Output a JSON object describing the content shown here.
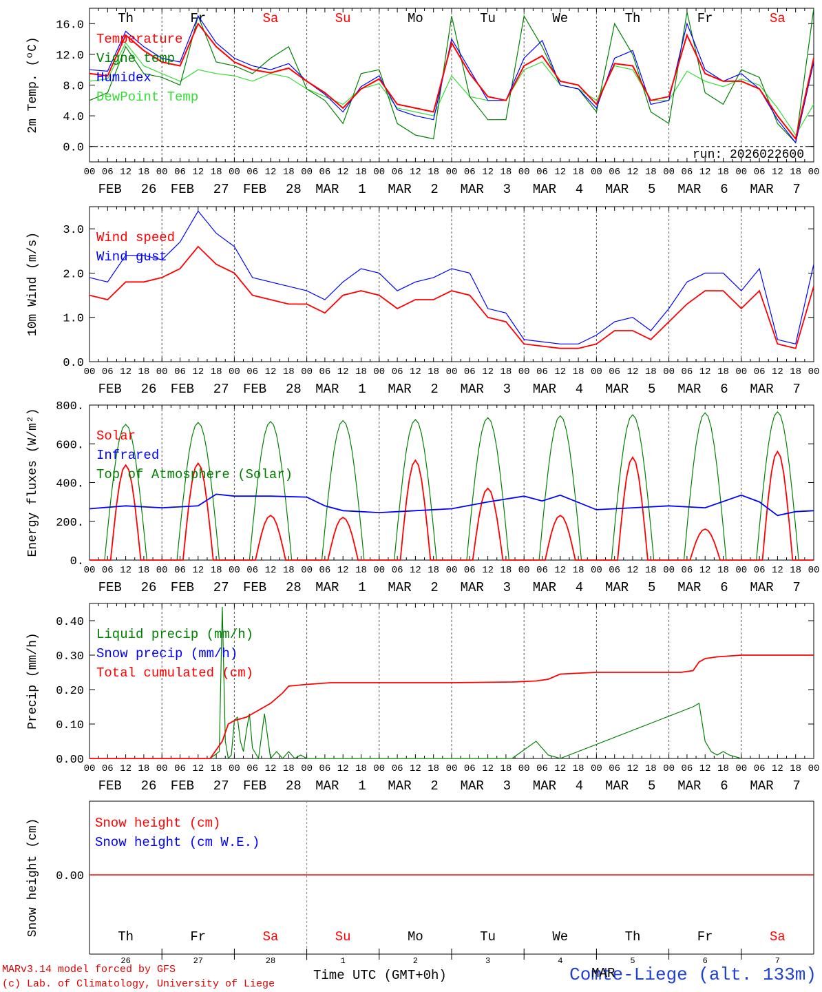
{
  "meteogram": {
    "days_short": [
      "Th",
      "Fr",
      "Sa",
      "Su",
      "Mo",
      "Tu",
      "We",
      "Th",
      "Fr",
      "Sa"
    ],
    "weekend_days": [
      "Sa",
      "Su"
    ],
    "date_month": [
      "FEB",
      "FEB",
      "FEB",
      "MAR",
      "MAR",
      "MAR",
      "MAR",
      "MAR",
      "MAR",
      "MAR"
    ],
    "date_day": [
      "26",
      "27",
      "28",
      "1",
      "2",
      "3",
      "4",
      "5",
      "6",
      "7"
    ],
    "hour_ticks": [
      "00",
      "06",
      "12",
      "18"
    ],
    "last_tick": "00",
    "run_label": "run: 2026022600",
    "colors": {
      "red": "#ff0000",
      "green": "#008000",
      "blue": "#0000ff",
      "lightgreen": "#33dd33",
      "weekend": "#ff0000"
    }
  },
  "chart_data": [
    {
      "id": "temperature",
      "type": "line",
      "ylabel": "2m Temp. (ºC)",
      "ylim": [
        -2,
        18
      ],
      "y_ticks": [
        0.0,
        4.0,
        8.0,
        12.0,
        16.0
      ],
      "y_tick_labels": [
        "0.0",
        "4.0",
        "8.0",
        "12.0",
        "16.0"
      ],
      "legend": [
        "Temperature",
        "Vigne temp",
        "Humidex",
        "DewPoint Temp"
      ],
      "x_hours": [
        0,
        6,
        12,
        18,
        24,
        30,
        36,
        42,
        48,
        54,
        60,
        66,
        72,
        78,
        84,
        90,
        96,
        102,
        108,
        114,
        120,
        126,
        132,
        138,
        144,
        150,
        156,
        162,
        168,
        174,
        180,
        186,
        192,
        198,
        204,
        210,
        216,
        222,
        228,
        234,
        240
      ],
      "series": [
        {
          "name": "Temperature",
          "color": "red",
          "values": [
            9.5,
            9.2,
            14.5,
            12.5,
            11.0,
            10.5,
            16.0,
            13.0,
            11.0,
            10.0,
            9.6,
            10.2,
            8.5,
            7.0,
            5.0,
            7.5,
            8.8,
            5.5,
            5.0,
            4.5,
            13.5,
            9.5,
            6.5,
            6.0,
            10.5,
            11.8,
            8.5,
            8.0,
            5.5,
            10.8,
            10.5,
            6.0,
            6.5,
            14.5,
            9.5,
            8.5,
            8.5,
            7.5,
            4.0,
            1.0,
            11.5
          ]
        },
        {
          "name": "Vigne temp",
          "color": "green",
          "values": [
            6.0,
            7.0,
            13.0,
            9.5,
            9.0,
            8.0,
            17.0,
            11.0,
            10.5,
            9.5,
            11.5,
            13.0,
            7.5,
            6.0,
            3.0,
            9.5,
            10.0,
            3.0,
            1.5,
            1.0,
            17.0,
            6.5,
            3.5,
            3.5,
            17.0,
            13.0,
            8.0,
            7.5,
            4.5,
            16.0,
            12.0,
            4.5,
            3.0,
            17.5,
            7.0,
            5.5,
            10.0,
            9.0,
            3.0,
            0.5,
            18.0
          ]
        },
        {
          "name": "Humidex",
          "color": "blue",
          "values": [
            10.0,
            9.8,
            15.0,
            13.0,
            11.5,
            11.0,
            17.0,
            13.5,
            11.5,
            10.5,
            10.0,
            10.8,
            8.5,
            6.8,
            4.5,
            7.8,
            9.2,
            4.8,
            4.0,
            3.5,
            14.0,
            10.0,
            6.0,
            6.0,
            11.5,
            13.8,
            8.0,
            7.5,
            5.0,
            11.5,
            12.5,
            5.5,
            6.0,
            16.0,
            10.0,
            8.5,
            9.5,
            7.5,
            3.5,
            0.5,
            11.0
          ]
        },
        {
          "name": "DewPoint Temp",
          "color": "lightgreen",
          "values": [
            8.5,
            8.8,
            13.5,
            10.5,
            9.5,
            8.5,
            10.0,
            9.5,
            9.2,
            8.5,
            9.5,
            9.0,
            7.5,
            6.5,
            5.5,
            7.5,
            8.2,
            5.0,
            4.5,
            4.0,
            9.2,
            6.5,
            6.0,
            6.0,
            10.0,
            11.0,
            8.0,
            7.5,
            6.0,
            10.5,
            10.0,
            6.0,
            6.0,
            9.8,
            8.5,
            7.8,
            8.8,
            8.0,
            5.0,
            1.5,
            5.5
          ]
        }
      ]
    },
    {
      "id": "wind",
      "type": "line",
      "ylabel": "10m Wind (m/s)",
      "ylim": [
        0,
        3.5
      ],
      "y_ticks": [
        0.0,
        1.0,
        2.0,
        3.0
      ],
      "y_tick_labels": [
        "0.0",
        "1.0",
        "2.0",
        "3.0"
      ],
      "legend": [
        "Wind speed",
        "Wind gust"
      ],
      "x_hours": [
        0,
        6,
        12,
        18,
        24,
        30,
        36,
        42,
        48,
        54,
        60,
        66,
        72,
        78,
        84,
        90,
        96,
        102,
        108,
        114,
        120,
        126,
        132,
        138,
        144,
        150,
        156,
        162,
        168,
        174,
        180,
        186,
        192,
        198,
        204,
        210,
        216,
        222,
        228,
        234,
        240
      ],
      "series": [
        {
          "name": "Wind speed",
          "color": "red",
          "values": [
            1.5,
            1.4,
            1.8,
            1.8,
            1.9,
            2.1,
            2.6,
            2.2,
            2.0,
            1.5,
            1.4,
            1.3,
            1.3,
            1.1,
            1.5,
            1.6,
            1.5,
            1.2,
            1.4,
            1.4,
            1.6,
            1.5,
            1.0,
            0.9,
            0.4,
            0.35,
            0.3,
            0.3,
            0.4,
            0.7,
            0.7,
            0.5,
            0.9,
            1.3,
            1.6,
            1.6,
            1.2,
            1.6,
            0.4,
            0.3,
            1.7
          ]
        },
        {
          "name": "Wind gust",
          "color": "blue",
          "values": [
            1.9,
            1.8,
            2.4,
            2.4,
            2.3,
            2.7,
            3.4,
            2.9,
            2.6,
            1.9,
            1.8,
            1.7,
            1.6,
            1.4,
            1.8,
            2.1,
            2.0,
            1.6,
            1.8,
            1.9,
            2.1,
            2.0,
            1.2,
            1.1,
            0.5,
            0.45,
            0.4,
            0.4,
            0.6,
            0.9,
            1.0,
            0.7,
            1.2,
            1.8,
            2.0,
            2.0,
            1.6,
            2.1,
            0.5,
            0.4,
            2.2
          ]
        }
      ]
    },
    {
      "id": "energy",
      "type": "line",
      "ylabel": "Energy fluxes (W/m²)",
      "ylim": [
        0,
        800
      ],
      "y_ticks": [
        0,
        200,
        400,
        600,
        800
      ],
      "y_tick_labels": [
        "0.",
        "200.",
        "400.",
        "600.",
        "800."
      ],
      "legend": [
        "Solar",
        "Infrared",
        "Top of Atmosphere (Solar)"
      ],
      "toa_peaks": [
        700,
        710,
        715,
        720,
        725,
        735,
        745,
        750,
        760,
        765
      ],
      "solar_peaks": [
        490,
        500,
        230,
        220,
        515,
        370,
        230,
        530,
        160,
        560
      ],
      "infrared": {
        "x_hours": [
          0,
          12,
          24,
          36,
          42,
          48,
          60,
          72,
          78,
          84,
          96,
          108,
          120,
          132,
          144,
          150,
          156,
          168,
          174,
          180,
          192,
          204,
          216,
          222,
          228,
          234,
          240
        ],
        "values": [
          265,
          280,
          270,
          280,
          340,
          330,
          330,
          325,
          280,
          255,
          245,
          255,
          265,
          300,
          330,
          305,
          335,
          260,
          265,
          270,
          280,
          270,
          335,
          300,
          230,
          250,
          255
        ]
      }
    },
    {
      "id": "precip",
      "type": "line",
      "ylabel": "Precip (mm/h)",
      "ylim": [
        0,
        0.45
      ],
      "y_ticks": [
        0.0,
        0.1,
        0.2,
        0.3,
        0.4
      ],
      "y_tick_labels": [
        "0.00",
        "0.10",
        "0.20",
        "0.30",
        "0.40"
      ],
      "legend": [
        "Liquid precip (mm/h)",
        "Snow precip (mm/h)",
        "Total cumulated (cm)"
      ],
      "series": [
        {
          "name": "Liquid precip (mm/h)",
          "color": "green",
          "x_hours": [
            40,
            43,
            44,
            45,
            46,
            47,
            48,
            49,
            50,
            51,
            52,
            53,
            54,
            56,
            58,
            60,
            62,
            64,
            66,
            68,
            70,
            72,
            74,
            76,
            80,
            140,
            148,
            152,
            156,
            200,
            202,
            204,
            206,
            208,
            210,
            212,
            216
          ],
          "values": [
            0.0,
            0.02,
            0.44,
            0.05,
            0.0,
            0.01,
            0.11,
            0.12,
            0.05,
            0.02,
            0.08,
            0.13,
            0.03,
            0.0,
            0.13,
            0.0,
            0.02,
            0.0,
            0.02,
            0.0,
            0.01,
            0.0,
            0.0,
            0.0,
            0.0,
            0.0,
            0.05,
            0.01,
            0.0,
            0.15,
            0.16,
            0.05,
            0.02,
            0.01,
            0.02,
            0.01,
            0.0
          ]
        },
        {
          "name": "Total cumulated (cm)",
          "color": "red",
          "x_hours": [
            0,
            40,
            44,
            46,
            48,
            52,
            56,
            60,
            64,
            66,
            72,
            80,
            96,
            120,
            140,
            148,
            152,
            156,
            168,
            180,
            196,
            200,
            202,
            204,
            208,
            216,
            240
          ],
          "values": [
            0,
            0,
            0.05,
            0.1,
            0.11,
            0.12,
            0.14,
            0.16,
            0.19,
            0.21,
            0.215,
            0.22,
            0.22,
            0.22,
            0.222,
            0.225,
            0.23,
            0.245,
            0.25,
            0.25,
            0.25,
            0.255,
            0.28,
            0.29,
            0.295,
            0.3,
            0.3
          ]
        }
      ]
    },
    {
      "id": "snow",
      "type": "line",
      "ylabel": "Snow height (cm)",
      "y_ticks": [
        0.0
      ],
      "y_tick_labels": [
        "0.00"
      ],
      "legend": [
        "Snow height (cm)",
        "Snow height (cm W.E.)"
      ],
      "series": [
        {
          "name": "Snow height (cm)",
          "color": "red",
          "values": [
            0.0,
            0.0
          ]
        }
      ]
    }
  ],
  "footer": {
    "credit_line1": "MARv3.14 model forced by GFS",
    "credit_line2": "(c) Lab. of Climatology, University of Liege",
    "xaxis_label": "Time UTC (GMT+0h)",
    "month_label": "MAR",
    "site_label": "Comte-Liege (alt. 133m)"
  }
}
